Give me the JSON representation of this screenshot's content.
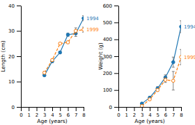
{
  "chart_data": [
    {
      "type": "line",
      "xlabel": "Age (years)",
      "ylabel": "Length (cm)",
      "x": [
        3,
        4,
        5,
        6,
        7,
        8
      ],
      "xlim": [
        0,
        8
      ],
      "xticks": [
        0,
        1,
        2,
        3,
        4,
        5,
        6,
        7,
        8
      ],
      "ylim": [
        0,
        40
      ],
      "yticks": [
        0,
        10,
        20,
        30,
        40
      ],
      "series": [
        {
          "name": "1994",
          "marker": "circle",
          "line_style": "solid",
          "values": [
            12.5,
            18.0,
            21.5,
            28.5,
            29.0,
            35.0
          ],
          "errors": [
            0.4,
            0.5,
            0.5,
            0.6,
            1.2,
            1.0
          ]
        },
        {
          "name": "1999",
          "marker": "circle-open",
          "line_style": "dashed",
          "values": [
            13.5,
            18.5,
            25.0,
            25.5,
            30.0,
            30.5
          ],
          "errors": [
            0.5,
            0.4,
            0.4,
            0.5,
            1.2,
            1.0
          ]
        }
      ]
    },
    {
      "type": "line",
      "xlabel": "Age (years)",
      "ylabel": "Weight (g)",
      "x": [
        3,
        4,
        5,
        6,
        7,
        8
      ],
      "xlim": [
        0,
        8
      ],
      "xticks": [
        0,
        1,
        2,
        3,
        4,
        5,
        6,
        7,
        8
      ],
      "ylim": [
        0,
        600
      ],
      "yticks": [
        0,
        100,
        200,
        300,
        400,
        500,
        600
      ],
      "series": [
        {
          "name": "1994",
          "marker": "circle",
          "line_style": "solid",
          "values": [
            20.0,
            55.0,
            110.0,
            175.0,
            265.0,
            475.0
          ],
          "errors": [
            4,
            7,
            10,
            15,
            30,
            35
          ]
        },
        {
          "name": "1999",
          "marker": "circle-open",
          "line_style": "dashed",
          "values": [
            5.0,
            45.0,
            100.0,
            160.0,
            155.0,
            295.0
          ],
          "errors": [
            2,
            6,
            8,
            15,
            55,
            45
          ]
        }
      ]
    }
  ]
}
